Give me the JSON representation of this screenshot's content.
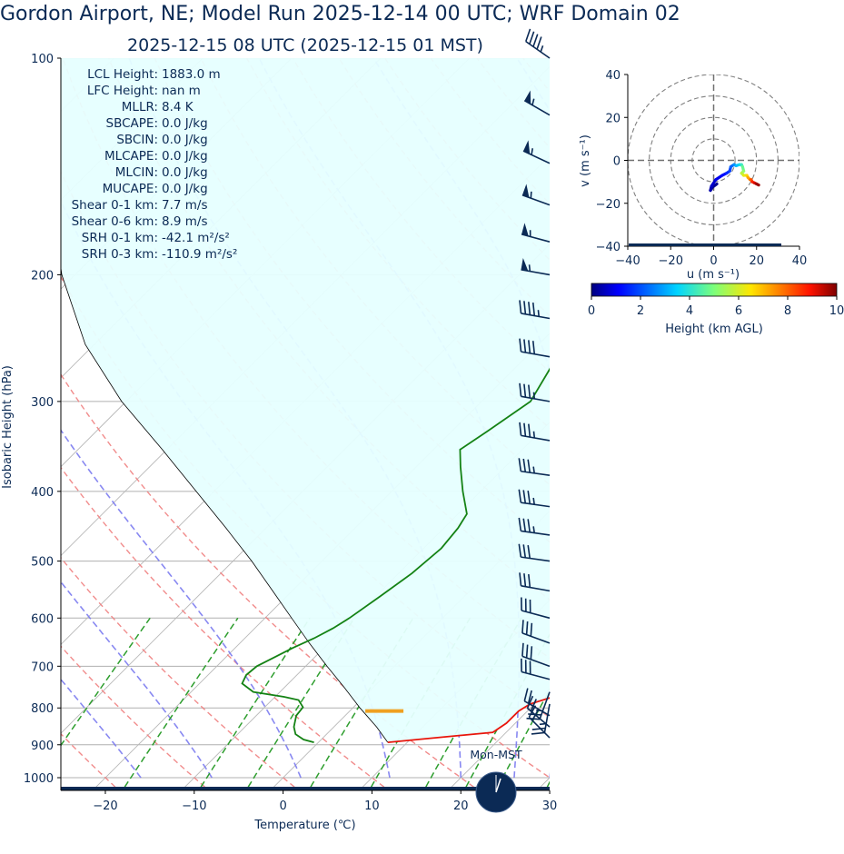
{
  "header": {
    "title": "Gordon Airport, NE; Model Run 2025-12-14 00 UTC; WRF Domain 02",
    "subtitle": "2025-12-15 08 UTC  (2025-12-15 01 MST)"
  },
  "colors": {
    "text": "#0b2a55",
    "temperature": "#e8150b",
    "dewpoint": "#148214",
    "parcel": "#000000",
    "dry_adiabat": "#f08080",
    "moist_adiabat": "#7b7bf0",
    "mixing_ratio": "#2e9e2e",
    "cape_fill": "#e6ffff",
    "lcl_marker": "#f0a020",
    "barb": "#0b2a55"
  },
  "stats": [
    {
      "label": "LCL Height:",
      "value": "1883.0 m"
    },
    {
      "label": "LFC Height:",
      "value": "nan m"
    },
    {
      "label": "MLLR:",
      "value": "8.4 K"
    },
    {
      "label": "SBCAPE:",
      "value": "0.0 J/kg"
    },
    {
      "label": "SBCIN:",
      "value": "0.0 J/kg"
    },
    {
      "label": "MLCAPE:",
      "value": "0.0 J/kg"
    },
    {
      "label": "MLCIN:",
      "value": "0.0 J/kg"
    },
    {
      "label": "MUCAPE:",
      "value": "0.0 J/kg"
    },
    {
      "label": "Shear 0-1 km:",
      "value": "7.7 m/s"
    },
    {
      "label": "Shear 0-6 km:",
      "value": "8.9 m/s"
    },
    {
      "label": "SRH 0-1 km:",
      "value": "-42.1 m²/s²"
    },
    {
      "label": "SRH 0-3 km:",
      "value": "-110.9 m²/s²"
    }
  ],
  "clock_label": "Mon-MST",
  "chart_data": [
    {
      "type": "line",
      "name": "skew-t",
      "xlabel": "Temperature (℃)",
      "ylabel": "Isobaric Height (hPa)",
      "xlim": [
        -25,
        30
      ],
      "ylim": [
        1030,
        100
      ],
      "log_y": true,
      "skew": true,
      "x_ticks": [
        -20,
        -10,
        0,
        10,
        20,
        30
      ],
      "y_ticks": [
        100,
        200,
        300,
        400,
        500,
        600,
        700,
        800,
        900,
        1000
      ],
      "temperature": {
        "p": [
          893,
          865,
          840,
          808,
          790,
          760,
          720,
          680,
          640,
          600,
          560,
          520,
          480,
          440,
          400,
          370,
          340,
          310,
          290,
          260,
          230,
          215,
          190,
          165,
          150,
          140,
          130,
          120,
          110,
          100
        ],
        "t": [
          7.8,
          18.5,
          19.0,
          19.0,
          19.5,
          22.5,
          22.0,
          20.5,
          18.5,
          16.5,
          14.3,
          12.0,
          9.3,
          6.3,
          3.4,
          1.1,
          -1.2,
          -3.8,
          -5.5,
          -7.5,
          -8.7,
          -8.7,
          -6.0,
          -3.0,
          0.0,
          1.2,
          1.5,
          3.3,
          5.0,
          7.0
        ]
      },
      "dewpoint": {
        "p": [
          893,
          885,
          870,
          850,
          820,
          798,
          780,
          772,
          760,
          740,
          720,
          700,
          680,
          660,
          640,
          620,
          600,
          560,
          520,
          480,
          450,
          430,
          400,
          370,
          350,
          330,
          300,
          270,
          250,
          230,
          215,
          200,
          185,
          170,
          160,
          150,
          140,
          130,
          120,
          110,
          100
        ],
        "t": [
          -0.5,
          -2.0,
          -3.5,
          -4.5,
          -5.5,
          -5.7,
          -7.0,
          -9.0,
          -13.0,
          -15.2,
          -15.7,
          -15.5,
          -14.5,
          -13.5,
          -12.2,
          -11.2,
          -10.5,
          -9.5,
          -8.5,
          -8.0,
          -8.4,
          -9.0,
          -12.0,
          -15.0,
          -17.0,
          -16.0,
          -14.5,
          -16.0,
          -17.3,
          -18.0,
          -20.0,
          -23.0,
          -24.7,
          -25.5,
          -22.0,
          -21.0,
          -18.0,
          -15.5,
          -12.5,
          -9.5,
          -6.0
        ]
      },
      "parcel": {
        "p": [
          893,
          850,
          800,
          750,
          700,
          650,
          600,
          550,
          500,
          450,
          400,
          350,
          300,
          250,
          200,
          150,
          100
        ],
        "t": [
          7.8,
          4.8,
          0.8,
          -3.2,
          -7.6,
          -12.2,
          -17.0,
          -22.2,
          -27.9,
          -34.5,
          -42.0,
          -50.5,
          -60.5,
          -71.0,
          -81.5,
          -93.0,
          -108.0
        ]
      },
      "lcl_marker": {
        "p": 808,
        "t": 3.9
      },
      "wind_barbs": [
        {
          "p": 100,
          "speed_kt": 45,
          "dir": 305
        },
        {
          "p": 120,
          "speed_kt": 55,
          "dir": 300
        },
        {
          "p": 140,
          "speed_kt": 55,
          "dir": 295
        },
        {
          "p": 160,
          "speed_kt": 55,
          "dir": 290
        },
        {
          "p": 180,
          "speed_kt": 55,
          "dir": 285
        },
        {
          "p": 200,
          "speed_kt": 55,
          "dir": 280
        },
        {
          "p": 230,
          "speed_kt": 45,
          "dir": 280
        },
        {
          "p": 260,
          "speed_kt": 40,
          "dir": 280
        },
        {
          "p": 300,
          "speed_kt": 35,
          "dir": 280
        },
        {
          "p": 340,
          "speed_kt": 35,
          "dir": 280
        },
        {
          "p": 380,
          "speed_kt": 35,
          "dir": 278
        },
        {
          "p": 420,
          "speed_kt": 35,
          "dir": 278
        },
        {
          "p": 460,
          "speed_kt": 35,
          "dir": 278
        },
        {
          "p": 500,
          "speed_kt": 30,
          "dir": 278
        },
        {
          "p": 550,
          "speed_kt": 30,
          "dir": 280
        },
        {
          "p": 600,
          "speed_kt": 30,
          "dir": 285
        },
        {
          "p": 650,
          "speed_kt": 30,
          "dir": 290
        },
        {
          "p": 700,
          "speed_kt": 30,
          "dir": 290
        },
        {
          "p": 730,
          "speed_kt": 30,
          "dir": 285
        },
        {
          "p": 760,
          "speed_kt": 25,
          "dir": 200
        },
        {
          "p": 790,
          "speed_kt": 25,
          "dir": 190
        },
        {
          "p": 820,
          "speed_kt": 20,
          "dir": 300
        },
        {
          "p": 850,
          "speed_kt": 20,
          "dir": 310
        },
        {
          "p": 880,
          "speed_kt": 20,
          "dir": 315
        }
      ]
    },
    {
      "type": "scatter",
      "name": "hodograph",
      "xlabel": "u (m s⁻¹)",
      "ylabel": "v (m s⁻¹)",
      "xlim": [
        -40,
        40
      ],
      "ylim": [
        -40,
        40
      ],
      "ticks": [
        -40,
        -20,
        0,
        20,
        40
      ],
      "rings": [
        10,
        20,
        30,
        40
      ],
      "colorbar": {
        "label": "Height (km AGL)",
        "min": 0,
        "max": 10,
        "ticks": [
          0,
          2,
          4,
          6,
          8,
          10
        ]
      },
      "points": [
        {
          "u": 1.5,
          "v": -11.0,
          "h": 0.1
        },
        {
          "u": -0.5,
          "v": -12.5,
          "h": 0.2
        },
        {
          "u": -1.5,
          "v": -14.0,
          "h": 0.3
        },
        {
          "u": -1.0,
          "v": -12.0,
          "h": 0.5
        },
        {
          "u": 1.0,
          "v": -9.0,
          "h": 0.8
        },
        {
          "u": 4.0,
          "v": -7.0,
          "h": 1.1
        },
        {
          "u": 6.0,
          "v": -6.0,
          "h": 1.4
        },
        {
          "u": 7.5,
          "v": -5.0,
          "h": 1.7
        },
        {
          "u": 8.0,
          "v": -3.0,
          "h": 2.0
        },
        {
          "u": 9.5,
          "v": -2.0,
          "h": 2.5
        },
        {
          "u": 10.5,
          "v": -2.5,
          "h": 3.0
        },
        {
          "u": 12.0,
          "v": -2.0,
          "h": 3.5
        },
        {
          "u": 13.0,
          "v": -2.0,
          "h": 4.0
        },
        {
          "u": 13.5,
          "v": -3.0,
          "h": 4.5
        },
        {
          "u": 14.0,
          "v": -5.0,
          "h": 5.0
        },
        {
          "u": 13.0,
          "v": -6.0,
          "h": 5.5
        },
        {
          "u": 14.0,
          "v": -7.0,
          "h": 6.0
        },
        {
          "u": 15.5,
          "v": -7.0,
          "h": 6.5
        },
        {
          "u": 16.0,
          "v": -8.0,
          "h": 7.0
        },
        {
          "u": 17.0,
          "v": -9.0,
          "h": 7.5
        },
        {
          "u": 17.5,
          "v": -9.0,
          "h": 8.0
        },
        {
          "u": 18.0,
          "v": -10.0,
          "h": 8.5
        },
        {
          "u": 19.0,
          "v": -10.5,
          "h": 9.0
        },
        {
          "u": 20.0,
          "v": -11.0,
          "h": 9.5
        },
        {
          "u": 21.0,
          "v": -11.5,
          "h": 10.0
        }
      ]
    }
  ]
}
